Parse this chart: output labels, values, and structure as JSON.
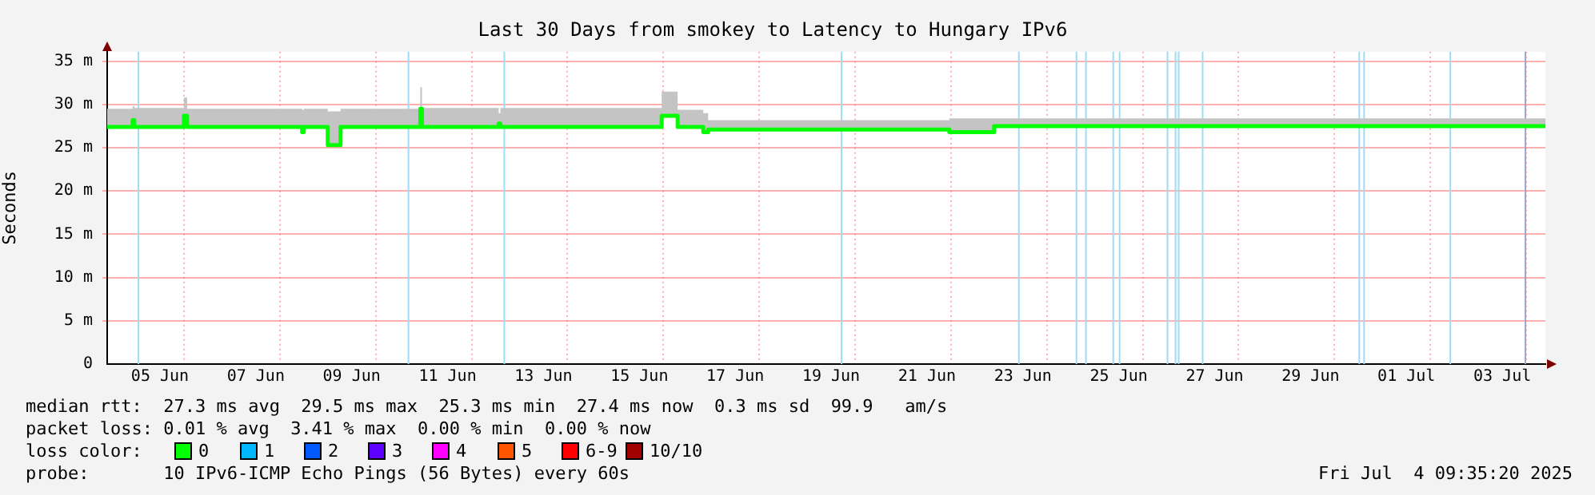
{
  "chart_data": {
    "type": "step",
    "title": "Last 30 Days from smokey to Latency to Hungary IPv6",
    "ylabel": "Seconds",
    "x": [
      "2025-06-04T09:35",
      "2025-06-04T22:20",
      "2025-06-04T23:10",
      "2025-06-06T00:00",
      "2025-06-06T01:35",
      "2025-06-08T11:10",
      "2025-06-08T12:00",
      "2025-06-09T00:00",
      "2025-06-09T06:25",
      "2025-06-10T22:20",
      "2025-06-10T23:10",
      "2025-06-12T13:35",
      "2025-06-12T14:25",
      "2025-06-15T23:10",
      "2025-06-16T07:10",
      "2025-06-16T20:00",
      "2025-06-16T22:25",
      "2025-06-21T23:10",
      "2025-06-22T21:35",
      "2025-07-04T09:35"
    ],
    "series": [
      {
        "color": "#00ff00",
        "values": [
          27.4,
          28.2,
          27.4,
          28.7,
          27.4,
          26.8,
          27.4,
          25.3,
          27.4,
          29.5,
          27.4,
          27.8,
          27.4,
          28.7,
          27.4,
          26.8,
          27.1,
          26.8,
          27.5,
          27.5
        ],
        "lower": [
          27.3,
          27.6,
          27.3,
          28.5,
          27.3,
          26.7,
          27.3,
          25.2,
          27.3,
          27.6,
          27.3,
          27.5,
          27.3,
          28.5,
          27.3,
          26.7,
          27.0,
          26.7,
          27.4,
          27.4
        ],
        "upper": [
          29.5,
          29.8,
          29.6,
          30.8,
          29.5,
          29.4,
          29.5,
          29.2,
          29.5,
          32.0,
          29.6,
          29.0,
          29.6,
          31.5,
          29.4,
          29.0,
          28.2,
          28.4,
          28.4,
          28.4
        ]
      }
    ],
    "xlim": [
      "2025-06-04T09:35",
      "2025-07-04T09:35"
    ],
    "xticks": [
      {
        "value": "2025-06-05T12:00",
        "label": "05 Jun"
      },
      {
        "value": "2025-06-06",
        "label": null
      },
      {
        "value": "2025-06-07T12:00",
        "label": "07 Jun"
      },
      {
        "value": "2025-06-08",
        "label": null
      },
      {
        "value": "2025-06-09T12:00",
        "label": "09 Jun"
      },
      {
        "value": "2025-06-10",
        "label": null
      },
      {
        "value": "2025-06-11T12:00",
        "label": "11 Jun"
      },
      {
        "value": "2025-06-12",
        "label": null
      },
      {
        "value": "2025-06-13T12:00",
        "label": "13 Jun"
      },
      {
        "value": "2025-06-14",
        "label": null
      },
      {
        "value": "2025-06-15T12:00",
        "label": "15 Jun"
      },
      {
        "value": "2025-06-16",
        "label": null
      },
      {
        "value": "2025-06-17T12:00",
        "label": "17 Jun"
      },
      {
        "value": "2025-06-18",
        "label": null
      },
      {
        "value": "2025-06-19T12:00",
        "label": "19 Jun"
      },
      {
        "value": "2025-06-20",
        "label": null
      },
      {
        "value": "2025-06-21T12:00",
        "label": "21 Jun"
      },
      {
        "value": "2025-06-22",
        "label": null
      },
      {
        "value": "2025-06-23T12:00",
        "label": "23 Jun"
      },
      {
        "value": "2025-06-24",
        "label": null
      },
      {
        "value": "2025-06-25T12:00",
        "label": "25 Jun"
      },
      {
        "value": "2025-06-26",
        "label": null
      },
      {
        "value": "2025-06-27T12:00",
        "label": "27 Jun"
      },
      {
        "value": "2025-06-28",
        "label": null
      },
      {
        "value": "2025-06-29T12:00",
        "label": "29 Jun"
      },
      {
        "value": "2025-06-30",
        "label": null
      },
      {
        "value": "2025-07-01T12:00",
        "label": "01 Jul"
      },
      {
        "value": "2025-07-02",
        "label": null
      },
      {
        "value": "2025-07-03T12:00",
        "label": "03 Jul"
      },
      {
        "value": "2025-07-04",
        "label": null
      }
    ],
    "ylim": [
      0,
      36.1
    ],
    "yticks": [
      {
        "value": 0,
        "label": "0"
      },
      {
        "value": 5,
        "label": "5 m"
      },
      {
        "value": 10,
        "label": "10 m"
      },
      {
        "value": 15,
        "label": "15 m"
      },
      {
        "value": 20,
        "label": "20 m"
      },
      {
        "value": 25,
        "label": "25 m"
      },
      {
        "value": 30,
        "label": "30 m"
      },
      {
        "value": 35,
        "label": "35 m"
      }
    ],
    "ref_lines": [
      {
        "axis": "x",
        "value": "2025-06-05T00:50",
        "color": "#9edcf5"
      },
      {
        "axis": "x",
        "value": "2025-06-10T16:00",
        "color": "#9edcf5"
      },
      {
        "axis": "x",
        "value": "2025-06-12T16:00",
        "color": "#9edcf5"
      },
      {
        "axis": "x",
        "value": "2025-06-19T16:50",
        "color": "#9edcf5"
      },
      {
        "axis": "x",
        "value": "2025-06-23T09:35",
        "color": "#9edcf5"
      },
      {
        "axis": "x",
        "value": "2025-06-24T14:25",
        "color": "#9edcf5"
      },
      {
        "axis": "x",
        "value": "2025-06-24T19:10",
        "color": "#9edcf5"
      },
      {
        "axis": "x",
        "value": "2025-06-25T08:50",
        "color": "#9edcf5"
      },
      {
        "axis": "x",
        "value": "2025-06-25T12:00",
        "color": "#9edcf5"
      },
      {
        "axis": "x",
        "value": "2025-06-26T12:00",
        "color": "#9edcf5"
      },
      {
        "axis": "x",
        "value": "2025-06-26T16:00",
        "color": "#9edcf5"
      },
      {
        "axis": "x",
        "value": "2025-06-26T17:35",
        "color": "#9edcf5"
      },
      {
        "axis": "x",
        "value": "2025-06-27T05:35",
        "color": "#9edcf5"
      },
      {
        "axis": "x",
        "value": "2025-06-30T12:00",
        "color": "#9edcf5"
      },
      {
        "axis": "x",
        "value": "2025-06-30T14:25",
        "color": "#9edcf5"
      },
      {
        "axis": "x",
        "value": "2025-07-02T09:35",
        "color": "#9edcf5"
      },
      {
        "axis": "x",
        "value": "2025-07-03T23:10",
        "color": "#98a8d0"
      }
    ],
    "grid": true,
    "annotations": [
      "median rtt:  27.3 ms avg  29.5 ms max  25.3 ms min  27.4 ms now  0.3 ms sd  99.9   am/s",
      "packet loss: 0.01 % avg  3.41 % max  0.00 % min  0.00 % now",
      "loss color:",
      "0",
      "1",
      "2",
      "3",
      "4",
      "5",
      "6-9",
      "10/10",
      "probe:       10 IPv6-ICMP Echo Pings (56 Bytes) every 60s",
      "Fri Jul  4 09:35:20 2025"
    ]
  }
}
